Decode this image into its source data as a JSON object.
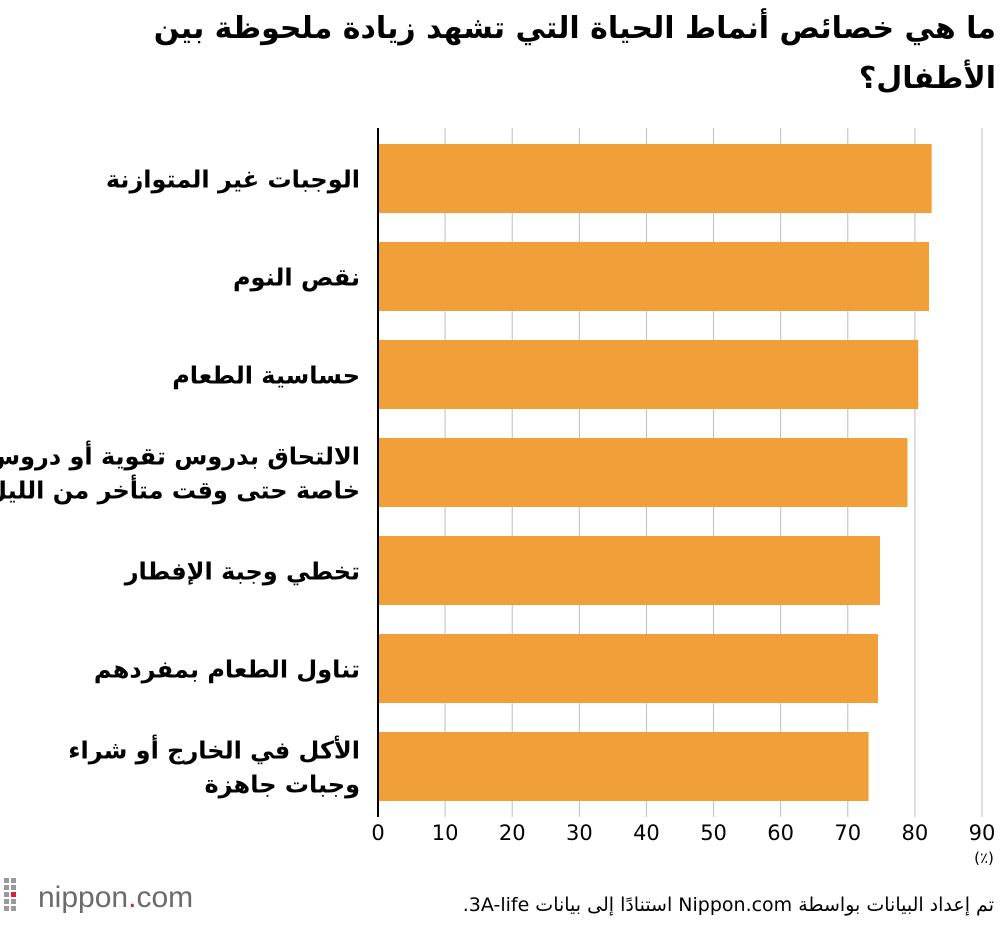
{
  "title": "ما هي خصائص أنماط الحياة التي تشهد زيادة ملحوظة بين الأطفال؟",
  "chart_data": {
    "type": "bar",
    "orientation": "horizontal",
    "categories": [
      [
        "الوجبات غير المتوازنة"
      ],
      [
        "نقص النوم"
      ],
      [
        "حساسية الطعام"
      ],
      [
        "الالتحاق بدروس تقوية أو دروس",
        "خاصة حتى وقت متأخر من الليل"
      ],
      [
        "تخطي وجبة الإفطار"
      ],
      [
        "تناول الطعام بمفردهم"
      ],
      [
        "الأكل في الخارج أو شراء",
        "وجبات جاهزة"
      ]
    ],
    "values": [
      82.5,
      82.1,
      80.5,
      78.9,
      74.8,
      74.5,
      73.1
    ],
    "xlim": [
      0,
      90
    ],
    "xticks": [
      "0",
      "10",
      "20",
      "30",
      "40",
      "50",
      "60",
      "70",
      "80",
      "90"
    ],
    "xunit": "(٪)",
    "bar_color": "#f19f38",
    "grid": true
  },
  "footer": {
    "logo_main": "nippon",
    "logo_dot": ".",
    "logo_suffix": "com",
    "source": "تم إعداد البيانات بواسطة Nippon.com استنادًا إلى بيانات 3A-life."
  }
}
